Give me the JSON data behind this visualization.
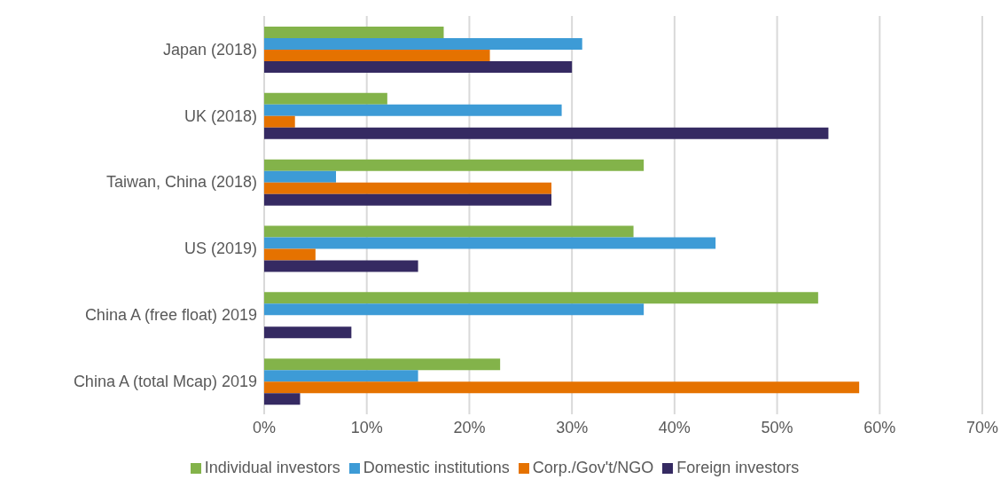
{
  "chart_data": {
    "type": "bar",
    "orientation": "horizontal",
    "categories": [
      "Japan (2018)",
      "UK (2018)",
      "Taiwan, China (2018)",
      "US (2019)",
      "China A (free float) 2019",
      "China A (total Mcap) 2019"
    ],
    "series": [
      {
        "name": "Individual investors",
        "color": "#83b34a",
        "values": [
          17.5,
          12,
          37,
          36,
          54,
          23
        ]
      },
      {
        "name": "Domestic institutions",
        "color": "#3d9bd6",
        "values": [
          31,
          29,
          7,
          44,
          37,
          15
        ]
      },
      {
        "name": "Corp./Gov't/NGO",
        "color": "#e57200",
        "values": [
          22,
          3,
          28,
          5,
          0,
          58
        ]
      },
      {
        "name": "Foreign investors",
        "color": "#352a62",
        "values": [
          30,
          55,
          28,
          15,
          8.5,
          3.5
        ]
      }
    ],
    "xlim": [
      0,
      70
    ],
    "xticks": [
      {
        "value": 0,
        "label": "0%"
      },
      {
        "value": 10,
        "label": "10%"
      },
      {
        "value": 20,
        "label": "20%"
      },
      {
        "value": 30,
        "label": "30%"
      },
      {
        "value": 40,
        "label": "40%"
      },
      {
        "value": 50,
        "label": "50%"
      },
      {
        "value": 60,
        "label": "60%"
      },
      {
        "value": 70,
        "label": "70%"
      }
    ],
    "grid": "x",
    "legend": "bottom"
  }
}
